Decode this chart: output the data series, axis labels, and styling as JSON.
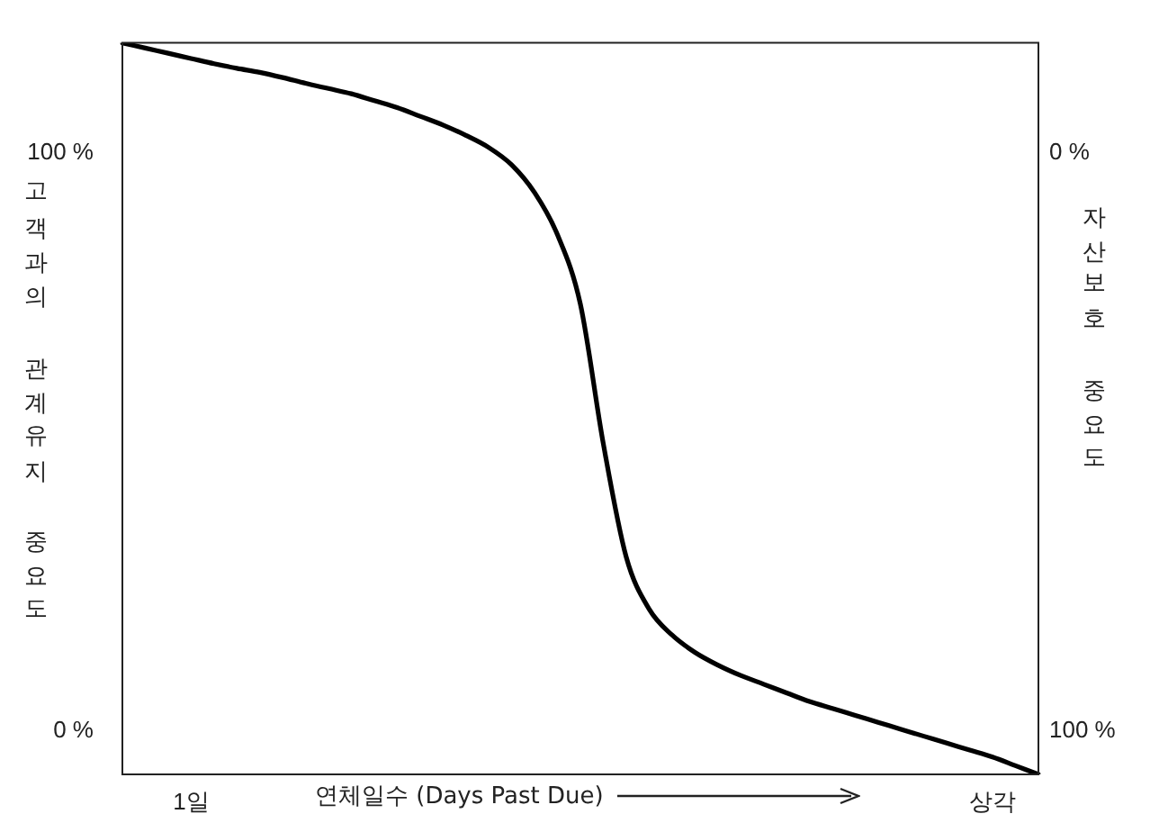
{
  "chart_data": {
    "type": "line",
    "xlabel": "연체일수 (Days Past Due)",
    "ylabel": "고객과의 관계유지 중요도",
    "y2label": "자산보호 중요도",
    "categories": [
      null,
      null,
      null,
      "1일",
      null,
      null,
      null,
      null,
      null,
      null,
      null,
      null,
      null,
      null,
      null,
      null,
      null,
      null,
      null,
      null,
      null,
      null,
      null,
      null,
      null,
      null,
      null,
      null,
      null,
      null,
      null,
      null,
      null,
      null,
      null,
      null,
      null,
      null,
      "상각",
      null,
      null
    ],
    "series": [
      {
        "color": "#000000",
        "values": [
          119,
          118.1,
          117.2,
          116.3,
          115.4,
          114.6,
          113.9,
          113,
          112,
          111.1,
          110.2,
          109,
          107.8,
          106.3,
          104.8,
          103,
          100.9,
          97.9,
          93.1,
          85.8,
          73.8,
          49.7,
          30.1,
          21.1,
          16.6,
          13.6,
          11.4,
          9.6,
          8.1,
          6.6,
          5.1,
          3.9,
          2.7,
          1.5,
          0.3,
          -0.9,
          -2.1,
          -3.3,
          -4.5,
          -6,
          -7.5
        ]
      }
    ],
    "ylim": [
      -7.5,
      119
    ],
    "yticks": [
      {
        "value": 0,
        "label": "0 %"
      },
      {
        "value": 100,
        "label": "100 %"
      }
    ],
    "y2lim": [
      107.5,
      -19
    ],
    "y2ticks": [
      {
        "value": 0,
        "label": "0 %"
      },
      {
        "value": 100,
        "label": "100 %"
      }
    ],
    "grid": false,
    "legend": false,
    "marker": "none",
    "line_style": "solid"
  }
}
